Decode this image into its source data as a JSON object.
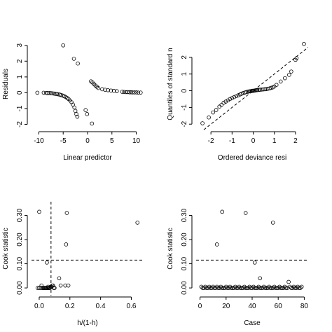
{
  "chart_data": [
    {
      "type": "scatter",
      "xlabel": "Linear predictor",
      "ylabel": "Residuals",
      "xlim": [
        -11.5,
        11.5
      ],
      "ylim": [
        -2.2,
        3.3
      ],
      "xticks": [
        -10,
        -5,
        0,
        5,
        10
      ],
      "yticks": [
        -2,
        -1,
        0,
        1,
        2,
        3
      ],
      "points": [
        [
          -10.3,
          0.0
        ],
        [
          -9,
          0.0
        ],
        [
          -8.5,
          -0.01
        ],
        [
          -8.2,
          -0.02
        ],
        [
          -7.8,
          -0.02
        ],
        [
          -7.5,
          -0.03
        ],
        [
          -7.2,
          -0.04
        ],
        [
          -6.9,
          -0.05
        ],
        [
          -6.6,
          -0.07
        ],
        [
          -6.3,
          -0.08
        ],
        [
          -6.0,
          -0.1
        ],
        [
          -5.7,
          -0.12
        ],
        [
          -5.4,
          -0.15
        ],
        [
          -5.1,
          -0.18
        ],
        [
          -4.8,
          -0.22
        ],
        [
          -4.5,
          -0.27
        ],
        [
          -4.2,
          -0.33
        ],
        [
          -3.9,
          -0.4
        ],
        [
          -3.6,
          -0.49
        ],
        [
          -3.3,
          -0.6
        ],
        [
          -3.0,
          -0.75
        ],
        [
          -2.7,
          -0.93
        ],
        [
          -2.5,
          -1.15
        ],
        [
          -2.3,
          -1.35
        ],
        [
          -2.1,
          -1.52
        ],
        [
          -5.0,
          3.0
        ],
        [
          -2.8,
          2.15
        ],
        [
          -2.0,
          1.85
        ],
        [
          -0.4,
          -1.1
        ],
        [
          -0.1,
          -1.35
        ],
        [
          0.9,
          -1.95
        ],
        [
          0.7,
          0.72
        ],
        [
          1.0,
          0.65
        ],
        [
          1.3,
          0.55
        ],
        [
          1.6,
          0.46
        ],
        [
          1.9,
          0.38
        ],
        [
          2.2,
          0.3
        ],
        [
          3.0,
          0.22
        ],
        [
          3.6,
          0.19
        ],
        [
          4.2,
          0.16
        ],
        [
          4.8,
          0.14
        ],
        [
          5.4,
          0.12
        ],
        [
          6.0,
          0.1
        ],
        [
          7.1,
          0.06
        ],
        [
          7.5,
          0.05
        ],
        [
          7.9,
          0.04
        ],
        [
          8.2,
          0.04
        ],
        [
          8.6,
          0.03
        ],
        [
          8.9,
          0.03
        ],
        [
          9.2,
          0.02
        ],
        [
          9.6,
          0.02
        ],
        [
          10.0,
          0.02
        ],
        [
          10.4,
          0.01
        ],
        [
          10.9,
          0.01
        ]
      ]
    },
    {
      "type": "scatter",
      "xlabel": "Ordered deviance resi",
      "ylabel": "Quantiles of standard n",
      "xlim": [
        -2.7,
        2.6
      ],
      "ylim": [
        -2.2,
        3.0
      ],
      "xticks": [
        -2,
        -1,
        0,
        1,
        2
      ],
      "yticks": [
        -2,
        -1,
        0,
        1,
        2
      ],
      "reference_line": {
        "slope": 1,
        "intercept": 0,
        "style": "dashed"
      },
      "points": [
        [
          -2.4,
          -1.95
        ],
        [
          -2.1,
          -1.6
        ],
        [
          -1.9,
          -1.3
        ],
        [
          -1.75,
          -1.15
        ],
        [
          -1.6,
          -0.95
        ],
        [
          -1.5,
          -0.85
        ],
        [
          -1.4,
          -0.72
        ],
        [
          -1.3,
          -0.65
        ],
        [
          -1.2,
          -0.58
        ],
        [
          -1.1,
          -0.5
        ],
        [
          -1.0,
          -0.44
        ],
        [
          -0.9,
          -0.38
        ],
        [
          -0.8,
          -0.32
        ],
        [
          -0.7,
          -0.27
        ],
        [
          -0.62,
          -0.22
        ],
        [
          -0.55,
          -0.18
        ],
        [
          -0.48,
          -0.14
        ],
        [
          -0.4,
          -0.11
        ],
        [
          -0.33,
          -0.08
        ],
        [
          -0.26,
          -0.06
        ],
        [
          -0.2,
          -0.04
        ],
        [
          -0.15,
          -0.03
        ],
        [
          -0.1,
          -0.02
        ],
        [
          -0.06,
          -0.01
        ],
        [
          -0.02,
          0.0
        ],
        [
          0.02,
          0.0
        ],
        [
          0.06,
          0.01
        ],
        [
          0.1,
          0.02
        ],
        [
          0.15,
          0.03
        ],
        [
          0.2,
          0.04
        ],
        [
          0.26,
          0.05
        ],
        [
          0.33,
          0.06
        ],
        [
          0.4,
          0.07
        ],
        [
          0.48,
          0.08
        ],
        [
          0.55,
          0.09
        ],
        [
          0.62,
          0.1
        ],
        [
          0.7,
          0.12
        ],
        [
          0.78,
          0.14
        ],
        [
          0.85,
          0.17
        ],
        [
          0.92,
          0.2
        ],
        [
          1.0,
          0.25
        ],
        [
          1.1,
          0.35
        ],
        [
          1.3,
          0.55
        ],
        [
          1.5,
          0.75
        ],
        [
          1.7,
          0.95
        ],
        [
          1.8,
          1.15
        ],
        [
          2.0,
          1.85
        ],
        [
          2.05,
          1.95
        ],
        [
          2.4,
          2.8
        ]
      ]
    },
    {
      "type": "scatter",
      "xlabel": "h/(1-h)",
      "ylabel": "Cook statistic",
      "xlim": [
        -0.05,
        0.68
      ],
      "ylim": [
        -0.02,
        0.345
      ],
      "xticks": [
        0.0,
        0.2,
        0.4,
        0.6
      ],
      "xtick_labels": [
        "0.0",
        "0.2",
        "0.4",
        "0.6"
      ],
      "yticks": [
        0.0,
        0.1,
        0.2,
        0.3
      ],
      "ytick_labels": [
        "0.00",
        "0.10",
        "0.20",
        "0.30"
      ],
      "hline": {
        "y": 0.115,
        "style": "dashed"
      },
      "vline": {
        "x": 0.077,
        "style": "dashed"
      },
      "points": [
        [
          -0.01,
          0.0
        ],
        [
          0.0,
          0.0
        ],
        [
          0.01,
          0.0
        ],
        [
          0.02,
          0.0
        ],
        [
          0.03,
          0.0
        ],
        [
          0.035,
          0.0
        ],
        [
          0.04,
          0.0
        ],
        [
          0.045,
          0.0
        ],
        [
          0.05,
          0.0
        ],
        [
          0.055,
          0.0
        ],
        [
          0.06,
          0.0
        ],
        [
          0.065,
          0.0
        ],
        [
          0.07,
          0.0
        ],
        [
          0.075,
          0.005
        ],
        [
          0.08,
          0.005
        ],
        [
          0.085,
          0.01
        ],
        [
          0.09,
          0.01
        ],
        [
          0.095,
          0.0
        ],
        [
          0.1,
          0.0
        ],
        [
          0.015,
          0.01
        ],
        [
          0.025,
          0.0
        ],
        [
          0.058,
          0.005
        ],
        [
          0.0,
          0.315
        ],
        [
          0.05,
          0.105
        ],
        [
          0.13,
          0.04
        ],
        [
          0.14,
          0.01
        ],
        [
          0.17,
          0.01
        ],
        [
          0.19,
          0.01
        ],
        [
          0.175,
          0.18
        ],
        [
          0.18,
          0.31
        ],
        [
          0.64,
          0.27
        ]
      ]
    },
    {
      "type": "scatter",
      "xlabel": "Case",
      "ylabel": "Cook statistic",
      "xlim": [
        -3,
        83
      ],
      "ylim": [
        -0.02,
        0.345
      ],
      "xticks": [
        0,
        20,
        40,
        60,
        80
      ],
      "yticks": [
        0.0,
        0.1,
        0.2,
        0.3
      ],
      "ytick_labels": [
        "0.00",
        "0.10",
        "0.20",
        "0.30"
      ],
      "hline": {
        "y": 0.115,
        "style": "dashed"
      },
      "points": [
        [
          1,
          0.005
        ],
        [
          2,
          0.0
        ],
        [
          3,
          0.0
        ],
        [
          4,
          0.005
        ],
        [
          5,
          0.0
        ],
        [
          6,
          0.0
        ],
        [
          7,
          0.005
        ],
        [
          8,
          0.0
        ],
        [
          9,
          0.0
        ],
        [
          10,
          0.005
        ],
        [
          11,
          0.0
        ],
        [
          12,
          0.0
        ],
        [
          13,
          0.005
        ],
        [
          14,
          0.0
        ],
        [
          15,
          0.0
        ],
        [
          16,
          0.005
        ],
        [
          17,
          0.0
        ],
        [
          18,
          0.0
        ],
        [
          19,
          0.0
        ],
        [
          20,
          0.005
        ],
        [
          21,
          0.0
        ],
        [
          22,
          0.0
        ],
        [
          23,
          0.005
        ],
        [
          24,
          0.0
        ],
        [
          25,
          0.0
        ],
        [
          26,
          0.0
        ],
        [
          27,
          0.005
        ],
        [
          28,
          0.0
        ],
        [
          29,
          0.0
        ],
        [
          30,
          0.005
        ],
        [
          31,
          0.0
        ],
        [
          32,
          0.0
        ],
        [
          33,
          0.0
        ],
        [
          34,
          0.005
        ],
        [
          35,
          0.0
        ],
        [
          36,
          0.0
        ],
        [
          37,
          0.0
        ],
        [
          38,
          0.005
        ],
        [
          39,
          0.0
        ],
        [
          40,
          0.0
        ],
        [
          41,
          0.005
        ],
        [
          42,
          0.0
        ],
        [
          43,
          0.0
        ],
        [
          44,
          0.0
        ],
        [
          45,
          0.005
        ],
        [
          46,
          0.0
        ],
        [
          47,
          0.0
        ],
        [
          48,
          0.0
        ],
        [
          49,
          0.005
        ],
        [
          50,
          0.0
        ],
        [
          51,
          0.0
        ],
        [
          52,
          0.0
        ],
        [
          53,
          0.005
        ],
        [
          54,
          0.0
        ],
        [
          55,
          0.0
        ],
        [
          56,
          0.0
        ],
        [
          57,
          0.005
        ],
        [
          58,
          0.0
        ],
        [
          59,
          0.0
        ],
        [
          60,
          0.0
        ],
        [
          61,
          0.005
        ],
        [
          62,
          0.0
        ],
        [
          63,
          0.0
        ],
        [
          64,
          0.0
        ],
        [
          65,
          0.005
        ],
        [
          66,
          0.0
        ],
        [
          67,
          0.0
        ],
        [
          68,
          0.025
        ],
        [
          69,
          0.005
        ],
        [
          70,
          0.0
        ],
        [
          71,
          0.0
        ],
        [
          72,
          0.005
        ],
        [
          73,
          0.0
        ],
        [
          74,
          0.0
        ],
        [
          75,
          0.005
        ],
        [
          76,
          0.0
        ],
        [
          77,
          0.0
        ],
        [
          78,
          0.005
        ],
        [
          13,
          0.18
        ],
        [
          17,
          0.315
        ],
        [
          35,
          0.31
        ],
        [
          42,
          0.105
        ],
        [
          46,
          0.04
        ],
        [
          56,
          0.27
        ]
      ]
    }
  ]
}
